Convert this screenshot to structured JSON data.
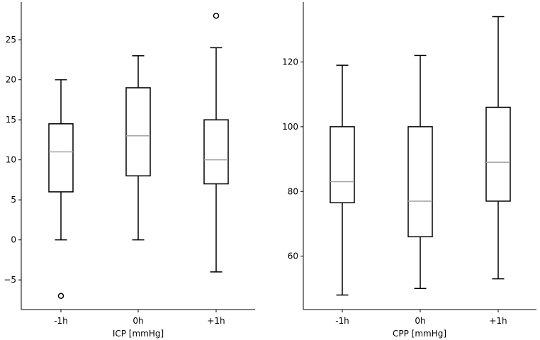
{
  "chart_data": [
    {
      "type": "box",
      "xlabel": "ICP [mmHg]",
      "ylabel": "",
      "ylim": [
        -8.7,
        29.7
      ],
      "yticks": [
        -5,
        0,
        5,
        10,
        15,
        20,
        25
      ],
      "categories": [
        "-1h",
        "0h",
        "+1h"
      ],
      "boxes": [
        {
          "label": "-1h",
          "whisker_low": 0,
          "q1": 6,
          "median": 11,
          "q3": 14.5,
          "whisker_high": 20,
          "outliers": [
            -7
          ]
        },
        {
          "label": "0h",
          "whisker_low": 0,
          "q1": 8,
          "median": 13,
          "q3": 19,
          "whisker_high": 23,
          "outliers": []
        },
        {
          "label": "+1h",
          "whisker_low": -4,
          "q1": 7,
          "median": 10,
          "q3": 15,
          "whisker_high": 24,
          "outliers": [
            28
          ]
        }
      ]
    },
    {
      "type": "box",
      "xlabel": "CPP [mmHg]",
      "ylabel": "",
      "ylim": [
        43.5,
        138.5
      ],
      "yticks": [
        60,
        80,
        100,
        120
      ],
      "categories": [
        "-1h",
        "0h",
        "+1h"
      ],
      "boxes": [
        {
          "label": "-1h",
          "whisker_low": 48,
          "q1": 76.5,
          "median": 83,
          "q3": 100,
          "whisker_high": 119,
          "outliers": []
        },
        {
          "label": "0h",
          "whisker_low": 50,
          "q1": 66,
          "median": 77,
          "q3": 100,
          "whisker_high": 122,
          "outliers": []
        },
        {
          "label": "+1h",
          "whisker_low": 53,
          "q1": 77,
          "median": 89,
          "q3": 106,
          "whisker_high": 134,
          "outliers": []
        }
      ]
    }
  ],
  "colors": {
    "box": "#000000",
    "median": "#a0a0a0",
    "axis": "#000000",
    "background": "#ffffff"
  }
}
